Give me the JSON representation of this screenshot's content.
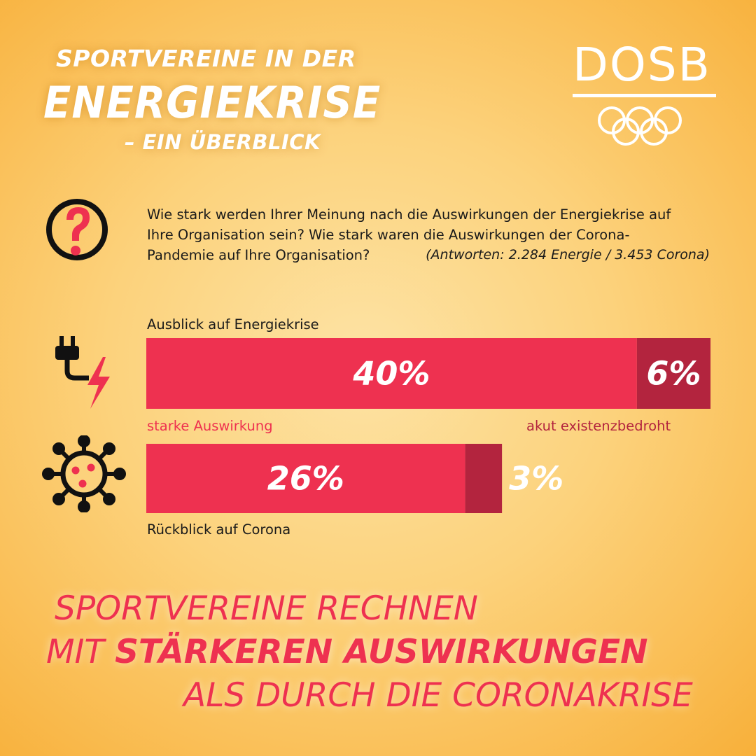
{
  "header": {
    "line1": "SPORTVEREINE IN DER",
    "line2": "ENERGIEKRISE",
    "line3": "– EIN ÜBERBLICK"
  },
  "logo": {
    "text": "DOSB"
  },
  "question": {
    "text": "Wie stark werden Ihrer Meinung nach die Auswirkungen der Energiekrise auf Ihre Organisation sein? Wie stark waren die Auswirkungen der Corona-Pandemie auf Ihre Organisation?",
    "answers": "(Antworten: 2.284 Energie / 3.453 Corona)"
  },
  "labels": {
    "energy": "Ausblick auf Energiekrise",
    "corona": "Rückblick auf Corona",
    "strong": "starke Auswirkung",
    "critical": "akut existenzbedroht"
  },
  "colors": {
    "strong": "#ee3150",
    "critical": "#b3243e",
    "title": "#ffffff",
    "text": "#1a1a1a"
  },
  "icons": [
    "question-icon",
    "plug-lightning-icon",
    "virus-icon"
  ],
  "chart_data": {
    "type": "bar",
    "orientation": "horizontal",
    "stacked": true,
    "categories": [
      "Ausblick auf Energiekrise",
      "Rückblick auf Corona"
    ],
    "series": [
      {
        "name": "starke Auswirkung",
        "values": [
          40,
          26
        ],
        "labels": [
          "40%",
          "26%"
        ]
      },
      {
        "name": "akut existenzbedroht",
        "values": [
          6,
          3
        ],
        "labels": [
          "6%",
          "3%"
        ]
      }
    ]
  },
  "conclusion": {
    "line1": "SPORTVEREINE RECHNEN",
    "line2_prefix": "MIT",
    "line2_bold": "STÄRKEREN AUSWIRKUNGEN",
    "line3": "ALS DURCH DIE CORONAKRISE"
  }
}
